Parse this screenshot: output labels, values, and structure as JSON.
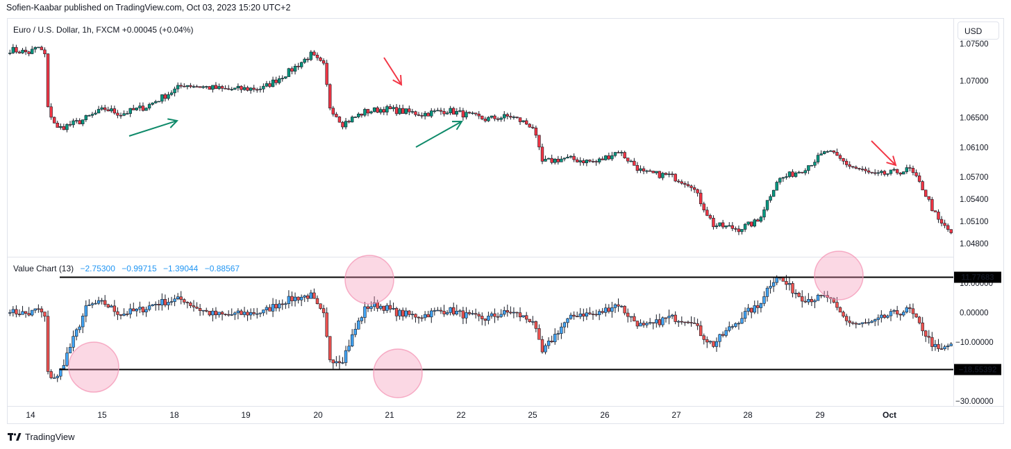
{
  "publisher_line": "Sofien-Kaabar published on TradingView.com, Oct 03, 2023 15:20 UTC+2",
  "brand": "TradingView",
  "currency_button": "USD",
  "main_legend": "Euro / U.S. Dollar, 1h, FXCM  +0.00045 (+0.04%)",
  "indicator_legend": {
    "name": "Value Chart (13)",
    "values": [
      "−2.75300",
      "−0.99715",
      "−1.39044",
      "−0.88567"
    ]
  },
  "colors": {
    "up": "#089981",
    "down": "#f23645",
    "vc_up": "#42a5f5",
    "vc_down": "#ef5350",
    "annot_green": "#0f8a6a",
    "annot_red": "#f23645",
    "circle": "#f48fb1"
  },
  "chart_data": [
    {
      "type": "candlestick",
      "title": "Euro / U.S. Dollar, 1h, FXCM",
      "y_ticks": [
        "1.07500",
        "1.07000",
        "1.06500",
        "1.06100",
        "1.05700",
        "1.05400",
        "1.05100",
        "1.04800"
      ],
      "ylim": [
        1.0475,
        1.0755
      ],
      "x_ticks": [
        "14",
        "15",
        "18",
        "19",
        "20",
        "21",
        "22",
        "25",
        "26",
        "27",
        "28",
        "29",
        "Oct"
      ],
      "close_path": [
        [
          0,
          1.0742
        ],
        [
          6,
          1.0738
        ],
        [
          9,
          1.0745
        ],
        [
          11,
          1.0735
        ],
        [
          12,
          1.0662
        ],
        [
          15,
          1.0635
        ],
        [
          22,
          1.0645
        ],
        [
          30,
          1.0662
        ],
        [
          35,
          1.0655
        ],
        [
          43,
          1.0665
        ],
        [
          55,
          1.0695
        ],
        [
          68,
          1.0688
        ],
        [
          80,
          1.069
        ],
        [
          88,
          1.0712
        ],
        [
          95,
          1.0735
        ],
        [
          99,
          1.072
        ],
        [
          101,
          1.0665
        ],
        [
          105,
          1.0642
        ],
        [
          112,
          1.0658
        ],
        [
          118,
          1.0662
        ],
        [
          130,
          1.0655
        ],
        [
          138,
          1.066
        ],
        [
          150,
          1.0648
        ],
        [
          158,
          1.0652
        ],
        [
          165,
          1.0638
        ],
        [
          168,
          1.059
        ],
        [
          175,
          1.0595
        ],
        [
          185,
          1.059
        ],
        [
          192,
          1.0605
        ],
        [
          200,
          1.0575
        ],
        [
          208,
          1.0572
        ],
        [
          215,
          1.056
        ],
        [
          222,
          1.0505
        ],
        [
          230,
          1.05
        ],
        [
          236,
          1.051
        ],
        [
          242,
          1.0565
        ],
        [
          250,
          1.058
        ],
        [
          258,
          1.0605
        ],
        [
          265,
          1.0585
        ],
        [
          273,
          1.0572
        ],
        [
          279,
          1.0576
        ],
        [
          284,
          1.058
        ],
        [
          288,
          1.0555
        ],
        [
          293,
          1.051
        ],
        [
          297,
          1.0495
        ]
      ],
      "annotations": [
        {
          "kind": "arrow-up",
          "color": "green"
        },
        {
          "kind": "arrow-down",
          "color": "red"
        },
        {
          "kind": "arrow-up",
          "color": "green"
        },
        {
          "kind": "arrow-down",
          "color": "red"
        }
      ]
    },
    {
      "type": "candlestick",
      "title": "Value Chart (13)",
      "y_ticks": [
        "10.00000",
        "0.00000",
        "−10.00000",
        "−30.00000"
      ],
      "ylim": [
        -32,
        15
      ],
      "horizontal_lines": [
        {
          "label": "11.77683",
          "value": 11.77683
        },
        {
          "label": "−18.55392",
          "value": -18.55392
        }
      ],
      "circled_extremes": 4,
      "x_ticks": [
        "14",
        "15",
        "18",
        "19",
        "20",
        "21",
        "22",
        "25",
        "26",
        "27",
        "28",
        "29",
        "Oct"
      ]
    }
  ]
}
